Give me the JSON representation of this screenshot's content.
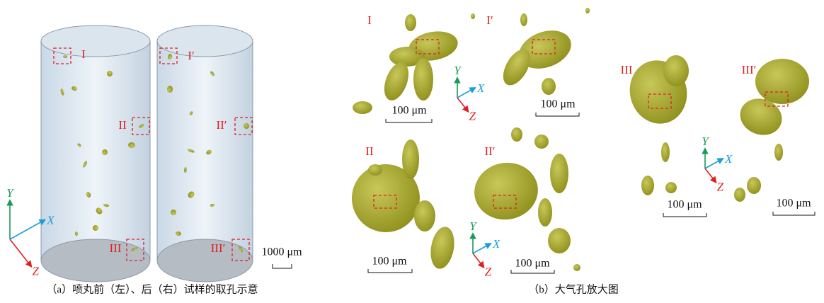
{
  "panel_a": {
    "caption": "（a）喷丸前（左）、后（右）试样的取孔示意",
    "region_labels": [
      "I",
      "I′",
      "II",
      "II′",
      "III",
      "III′"
    ],
    "scale_bar": "1000 μm",
    "axes": {
      "y": "Y",
      "x": "X",
      "z": "Z"
    }
  },
  "panel_b": {
    "caption": "（b）大气孔放大图",
    "view_labels": [
      "I",
      "I′",
      "II",
      "II′",
      "III",
      "III′"
    ],
    "scale_bars": [
      "100 μm",
      "100 μm",
      "100 μm",
      "100 μm",
      "100 μm",
      "100 μm"
    ],
    "axes": [
      {
        "y": "Y",
        "x": "X",
        "z": "Z"
      },
      {
        "y": "Y",
        "x": "X",
        "z": "Z"
      },
      {
        "y": "Y",
        "x": "X",
        "z": "Z"
      }
    ]
  }
}
